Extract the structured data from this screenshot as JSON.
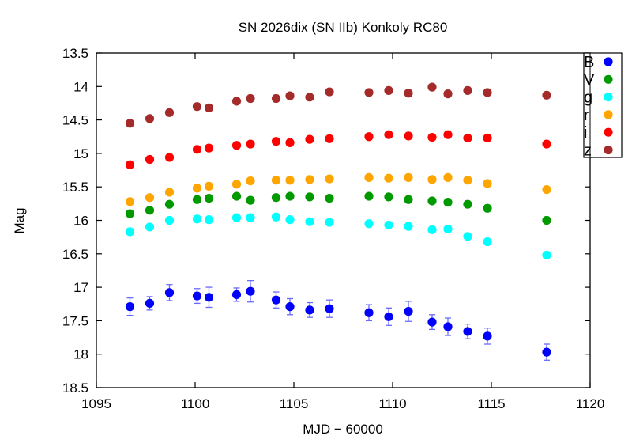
{
  "chart_data": {
    "type": "scatter",
    "title": "SN 2026dix (SN IIb) Konkoly RC80",
    "xlabel": "MJD − 60000",
    "ylabel": "Mag",
    "xlim": [
      1095,
      1120
    ],
    "ylim": [
      13.5,
      18.5
    ],
    "y_inverted": true,
    "xticks": [
      1095,
      1100,
      1105,
      1110,
      1115,
      1120
    ],
    "yticks": [
      13.5,
      14,
      14.5,
      15,
      15.5,
      16,
      16.5,
      17,
      17.5,
      18,
      18.5
    ],
    "grid": false,
    "legend_placement": "top-right",
    "x": [
      1096.7,
      1097.7,
      1098.7,
      1100.1,
      1100.7,
      1102.1,
      1102.8,
      1104.1,
      1104.8,
      1105.8,
      1106.8,
      1108.8,
      1109.8,
      1110.8,
      1112.0,
      1112.8,
      1113.8,
      1114.8,
      1117.8
    ],
    "series": [
      {
        "name": "B",
        "color": "#0000ff",
        "values": [
          17.29,
          17.24,
          17.08,
          17.13,
          17.15,
          17.11,
          17.06,
          17.19,
          17.29,
          17.34,
          17.32,
          17.38,
          17.44,
          17.36,
          17.52,
          17.59,
          17.66,
          17.73,
          17.97
        ],
        "errors": [
          0.13,
          0.1,
          0.12,
          0.11,
          0.15,
          0.1,
          0.16,
          0.12,
          0.12,
          0.11,
          0.13,
          0.12,
          0.13,
          0.15,
          0.11,
          0.13,
          0.11,
          0.12,
          0.12
        ]
      },
      {
        "name": "V",
        "color": "#009900",
        "values": [
          15.9,
          15.85,
          15.76,
          15.69,
          15.67,
          15.64,
          15.7,
          15.66,
          15.64,
          15.65,
          15.67,
          15.64,
          15.65,
          15.69,
          15.71,
          15.73,
          15.76,
          15.82,
          16.0
        ]
      },
      {
        "name": "g",
        "color": "#00ffff",
        "values": [
          16.17,
          16.1,
          16.0,
          15.98,
          15.99,
          15.96,
          15.96,
          15.95,
          15.99,
          16.02,
          16.03,
          16.05,
          16.07,
          16.09,
          16.14,
          16.13,
          16.24,
          16.32,
          16.52
        ]
      },
      {
        "name": "r",
        "color": "#ffa500",
        "values": [
          15.72,
          15.66,
          15.58,
          15.52,
          15.49,
          15.46,
          15.41,
          15.4,
          15.4,
          15.39,
          15.38,
          15.36,
          15.37,
          15.36,
          15.39,
          15.36,
          15.4,
          15.45,
          15.54
        ]
      },
      {
        "name": "i",
        "color": "#ff0000",
        "values": [
          15.17,
          15.09,
          15.06,
          14.94,
          14.92,
          14.88,
          14.86,
          14.82,
          14.84,
          14.79,
          14.78,
          14.75,
          14.72,
          14.74,
          14.76,
          14.72,
          14.77,
          14.77,
          14.86
        ]
      },
      {
        "name": "z",
        "color": "#a52a2a",
        "values": [
          14.55,
          14.48,
          14.39,
          14.3,
          14.32,
          14.22,
          14.18,
          14.18,
          14.14,
          14.16,
          14.08,
          14.09,
          14.06,
          14.1,
          14.01,
          14.11,
          14.06,
          14.09,
          14.13
        ]
      }
    ]
  }
}
